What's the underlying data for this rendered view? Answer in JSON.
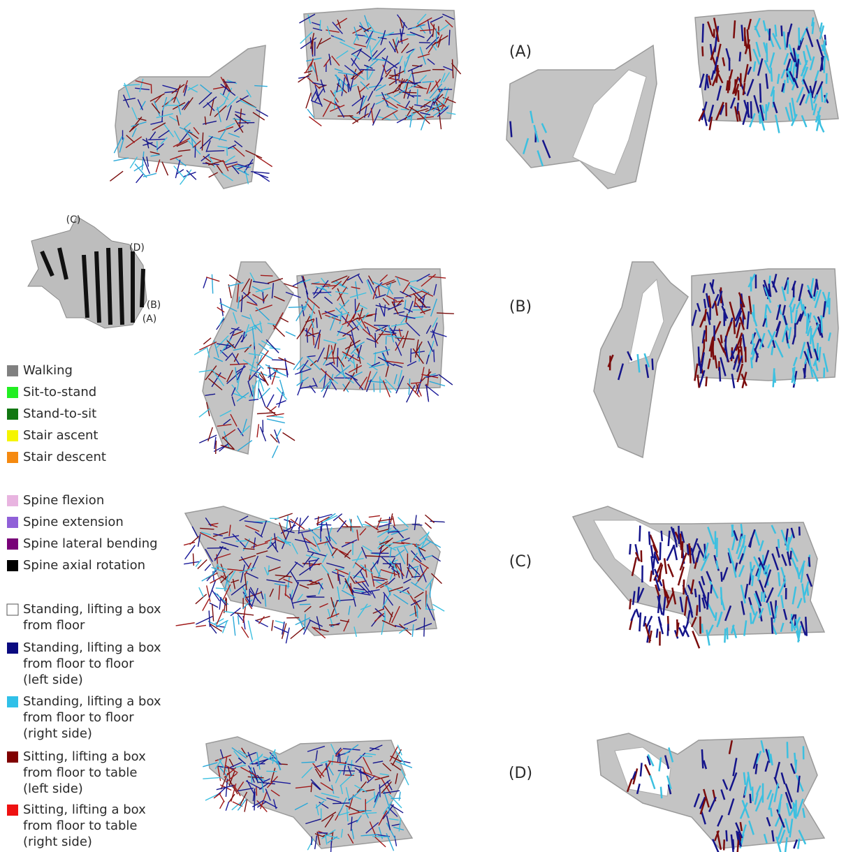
{
  "panel_labels": [
    "(A)",
    "(B)",
    "(C)",
    "(D)"
  ],
  "inset_labels": [
    "(C)",
    "(D)",
    "(B)",
    "(A)"
  ],
  "legend": [
    {
      "lines": [
        "Walking"
      ],
      "color": "#808080"
    },
    {
      "lines": [
        "Sit-to-stand"
      ],
      "color": "#22ee22"
    },
    {
      "lines": [
        "Stand-to-sit"
      ],
      "color": "#117711"
    },
    {
      "lines": [
        "Stair ascent"
      ],
      "color": "#f5f500"
    },
    {
      "lines": [
        "Stair descent"
      ],
      "color": "#f58a10"
    },
    {
      "lines": [
        "Spine flexion"
      ],
      "color": "#e8b4e0"
    },
    {
      "lines": [
        "Spine extension"
      ],
      "color": "#9060d8"
    },
    {
      "lines": [
        "Spine lateral bending"
      ],
      "color": "#780078"
    },
    {
      "lines": [
        "Spine axial rotation"
      ],
      "color": "#000000"
    },
    {
      "lines": [
        "Standing, lifting a box",
        "from floor"
      ],
      "color": "#ffffff"
    },
    {
      "lines": [
        "Standing, lifting a box",
        "from floor to floor",
        "(left side)"
      ],
      "color": "#0a0a80"
    },
    {
      "lines": [
        "Standing, lifting a box",
        "from floor to floor",
        "(right side)"
      ],
      "color": "#30c0e8"
    },
    {
      "lines": [
        "Sitting, lifting a box",
        "from floor to table",
        "(left side)"
      ],
      "color": "#800000"
    },
    {
      "lines": [
        "Sitting, lifting a box",
        "from floor to table",
        "(right side)"
      ],
      "color": "#ee1111"
    }
  ]
}
